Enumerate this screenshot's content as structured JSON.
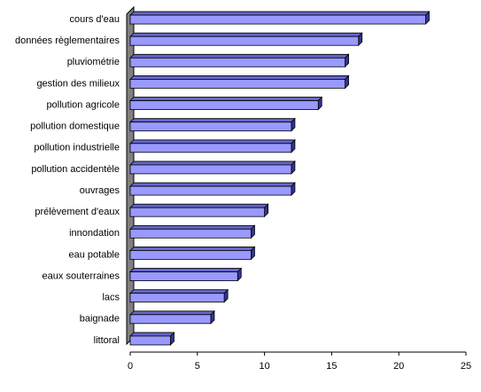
{
  "chart_data": {
    "type": "bar",
    "orientation": "horizontal",
    "categories": [
      "cours d'eau",
      "données règlementaires",
      "pluviométrie",
      "gestion des milieux",
      "pollution agricole",
      "pollution domestique",
      "pollution industrielle",
      "pollution accidentèle",
      "ouvrages",
      "prélèvement d'eaux",
      "innondation",
      "eau potable",
      "eaux souterraines",
      "lacs",
      "baignade",
      "littoral"
    ],
    "values": [
      22,
      17,
      16,
      16,
      14,
      12,
      12,
      12,
      12,
      10,
      9,
      9,
      8,
      7,
      6,
      3
    ],
    "color": "#9999ff",
    "xlim": [
      0,
      25
    ],
    "xticks": [
      0,
      5,
      10,
      15,
      20,
      25
    ]
  }
}
